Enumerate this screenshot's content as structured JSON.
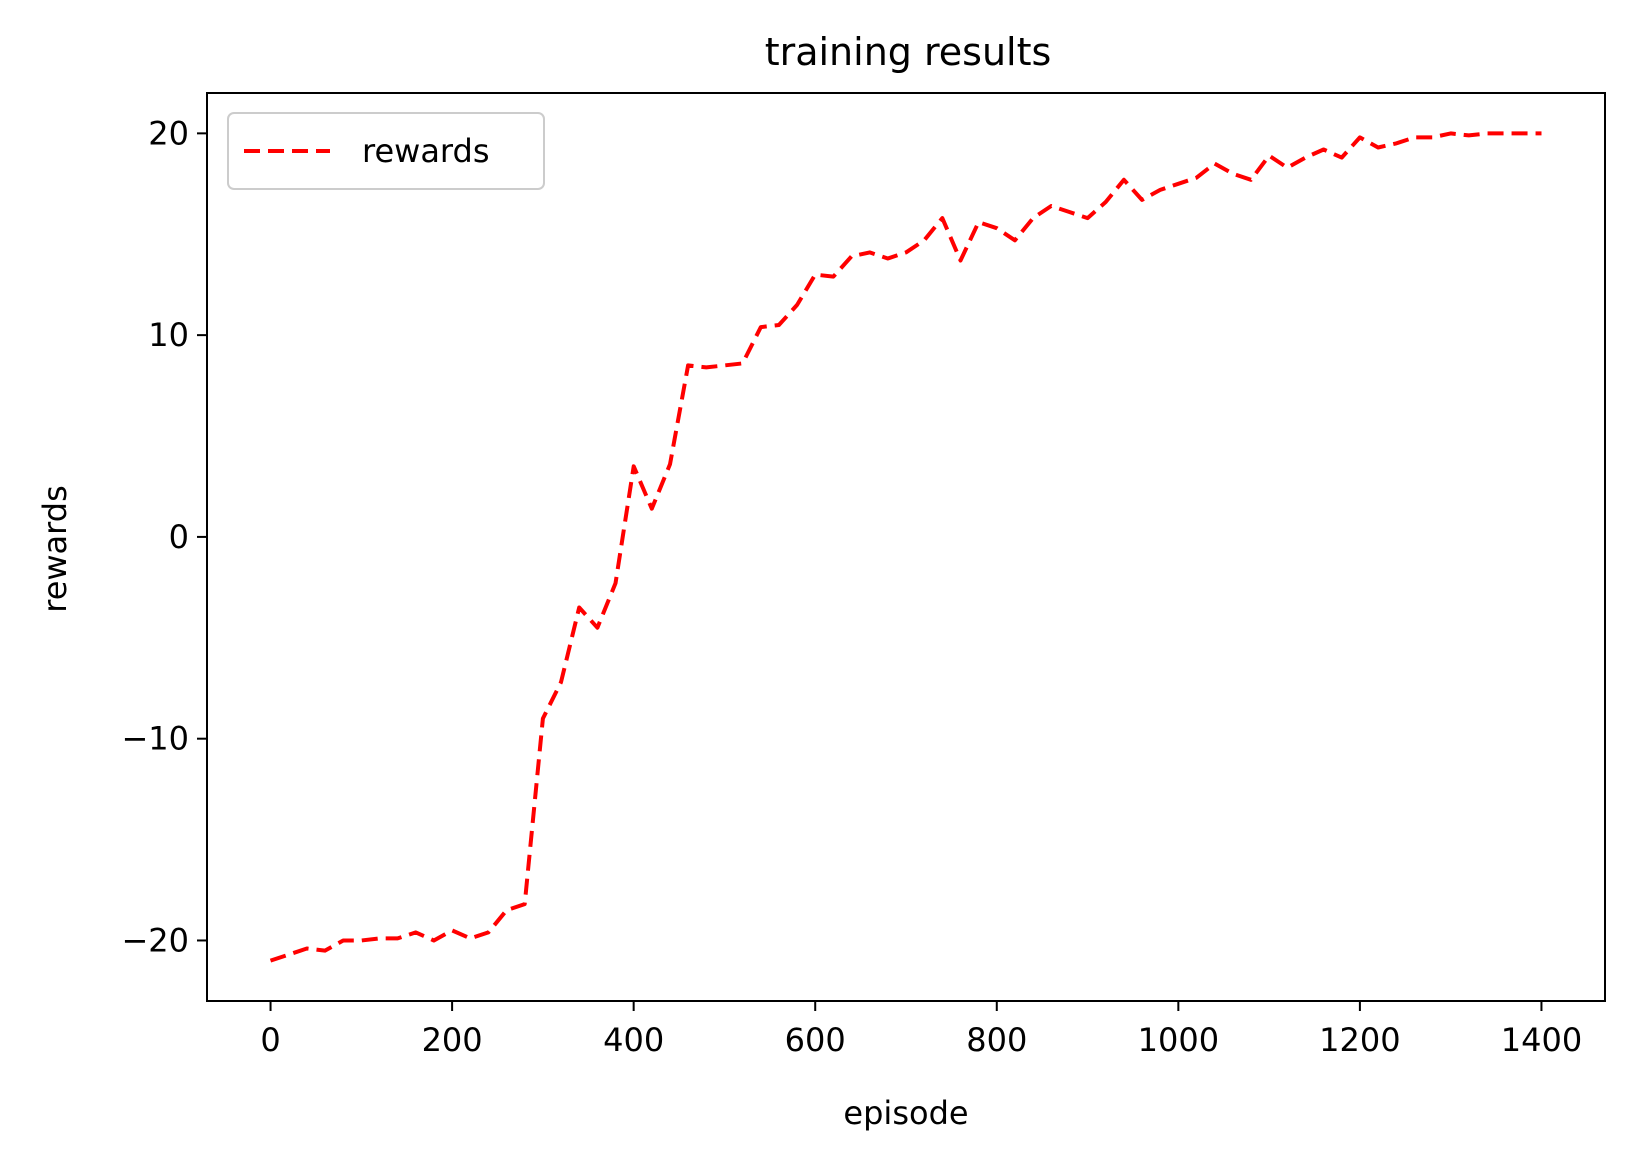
{
  "chart_data": {
    "type": "line",
    "title": "training results",
    "xlabel": "episode",
    "ylabel": "rewards",
    "xlim": [
      -70,
      1470
    ],
    "ylim": [
      -23,
      22
    ],
    "xticks": [
      0,
      200,
      400,
      600,
      800,
      1000,
      1200,
      1400
    ],
    "yticks": [
      -20,
      -10,
      0,
      10,
      20
    ],
    "xtick_labels": [
      "0",
      "200",
      "400",
      "600",
      "800",
      "1000",
      "1200",
      "1400"
    ],
    "ytick_labels": [
      "−20",
      "−10",
      "0",
      "10",
      "20"
    ],
    "grid": false,
    "legend": "top-left",
    "series": [
      {
        "name": "rewards",
        "color": "#ff0000",
        "style": "dashed",
        "x": [
          0,
          20,
          40,
          60,
          80,
          100,
          120,
          140,
          160,
          180,
          200,
          220,
          240,
          260,
          280,
          300,
          320,
          340,
          360,
          380,
          400,
          420,
          440,
          460,
          480,
          500,
          520,
          540,
          560,
          580,
          600,
          620,
          640,
          660,
          680,
          700,
          720,
          740,
          760,
          780,
          800,
          820,
          840,
          860,
          880,
          900,
          920,
          940,
          960,
          980,
          1000,
          1020,
          1040,
          1060,
          1080,
          1100,
          1120,
          1140,
          1160,
          1180,
          1200,
          1220,
          1240,
          1260,
          1280,
          1300,
          1320,
          1340,
          1360,
          1380,
          1400
        ],
        "y": [
          -21.0,
          -20.7,
          -20.4,
          -20.5,
          -20.0,
          -20.0,
          -19.9,
          -19.9,
          -19.6,
          -20.0,
          -19.5,
          -19.9,
          -19.6,
          -18.5,
          -18.2,
          -9.0,
          -7.2,
          -3.5,
          -4.5,
          -2.3,
          3.5,
          1.4,
          3.6,
          8.5,
          8.4,
          8.5,
          8.6,
          10.4,
          10.5,
          11.5,
          13.0,
          12.9,
          13.9,
          14.1,
          13.8,
          14.1,
          14.7,
          15.8,
          13.7,
          15.6,
          15.3,
          14.7,
          15.8,
          16.4,
          16.1,
          15.8,
          16.6,
          17.7,
          16.7,
          17.2,
          17.5,
          17.8,
          18.5,
          18.0,
          17.7,
          18.9,
          18.3,
          18.8,
          19.2,
          18.8,
          19.8,
          19.3,
          19.5,
          19.8,
          19.8,
          20.0,
          19.9,
          20.0,
          20.0,
          20.0,
          20.0
        ]
      }
    ]
  }
}
